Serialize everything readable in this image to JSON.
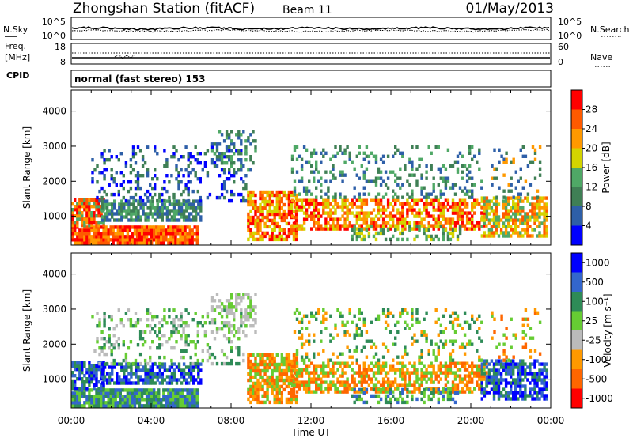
{
  "header": {
    "title": "Zhongshan Station (fitACF)",
    "beam": "Beam 11",
    "date": "01/May/2013"
  },
  "noise_panel": {
    "left_label": "N.Sky",
    "right_label": "N.Search",
    "left_ticks": [
      "10^5",
      "10^0"
    ],
    "right_ticks": [
      "10^5",
      "10^0"
    ]
  },
  "freq_panel": {
    "left_label_1": "Freq.",
    "left_label_2": "[MHz]",
    "right_label": "Nave",
    "left_ticks": [
      "18",
      "8"
    ],
    "right_ticks": [
      "60",
      "0"
    ]
  },
  "cpid": {
    "label": "CPID",
    "value": "normal (fast stereo) 153"
  },
  "colors": {
    "power": [
      "#0000ff",
      "#2e5fa8",
      "#3f7f55",
      "#4fa866",
      "#d4d400",
      "#ff9900",
      "#ff5a00",
      "#ff0000"
    ],
    "velocity": [
      "#0000ff",
      "#3366cc",
      "#2e8b57",
      "#66cc33",
      "#bbbbbb",
      "#ff9900",
      "#ff6600",
      "#ff0000"
    ]
  },
  "chart_data": [
    {
      "type": "heatmap",
      "name": "power",
      "ylabel": "Slant Range [km]",
      "yticks": [
        "1000",
        "2000",
        "3000",
        "4000"
      ],
      "ylim": [
        180,
        4600
      ],
      "xlim": [
        0,
        24
      ],
      "xticks": [
        "00:00",
        "04:00",
        "08:00",
        "12:00",
        "16:00",
        "20:00",
        "00:00"
      ],
      "colorbar": {
        "label": "Power [dB]",
        "ticks": [
          "4",
          "8",
          "12",
          "16",
          "20",
          "24",
          "28"
        ],
        "range": [
          0,
          32
        ]
      }
    },
    {
      "type": "heatmap",
      "name": "velocity",
      "ylabel": "Slant Range [km]",
      "yticks": [
        "1000",
        "2000",
        "3000",
        "4000"
      ],
      "ylim": [
        180,
        4600
      ],
      "xlim": [
        0,
        24
      ],
      "xticks": [
        "00:00",
        "04:00",
        "08:00",
        "12:00",
        "16:00",
        "20:00",
        "00:00"
      ],
      "xlabel": "Time UT",
      "colorbar": {
        "label": "Velocity [m s⁻¹]",
        "ticks": [
          "1000",
          "500",
          "100",
          "25",
          "-25",
          "-100",
          "-500",
          "-1000"
        ]
      }
    }
  ]
}
